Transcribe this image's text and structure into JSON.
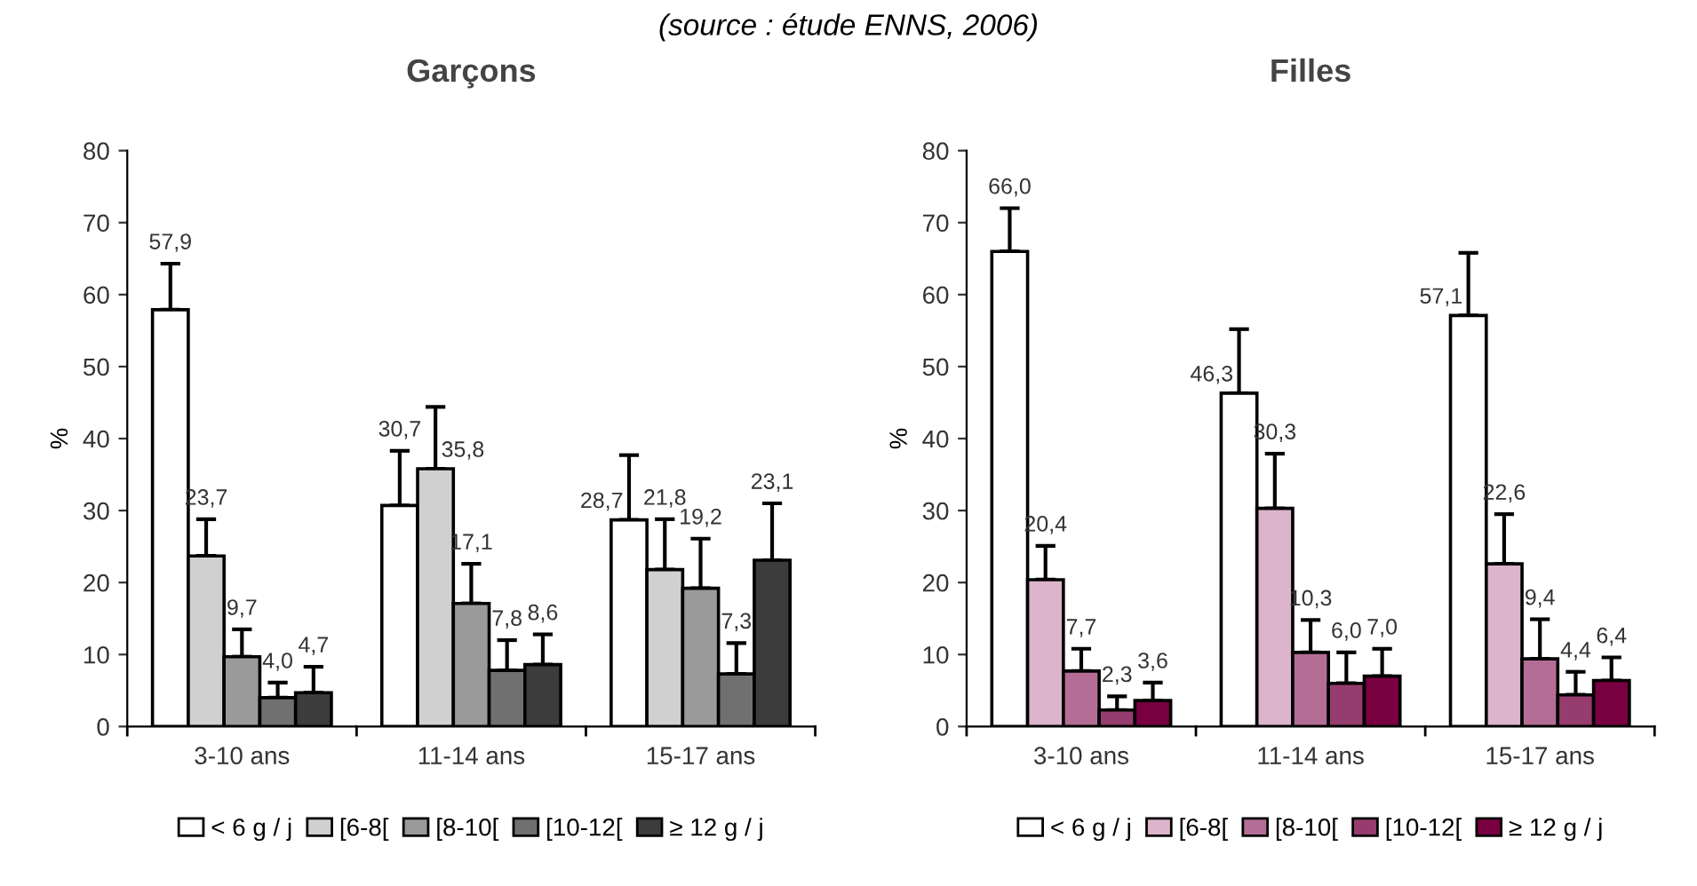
{
  "chart_data": [
    {
      "type": "bar",
      "title": "Garçons",
      "ylabel": "%",
      "categories": [
        "3-10 ans",
        "11-14 ans",
        "15-17 ans"
      ],
      "ylim": [
        0,
        80
      ],
      "yticks": [
        0,
        10,
        20,
        30,
        40,
        50,
        60,
        70,
        80
      ],
      "grid": false,
      "legend": "bottom",
      "annotations": [
        "(source : étude ENNS, 2006)"
      ],
      "series": [
        {
          "name": "< 6 g / j",
          "color": "#ffffff",
          "values": [
            57.9,
            30.7,
            28.7
          ],
          "value_labels": [
            "57,9",
            "30,7",
            "28,7"
          ],
          "errors": [
            [
              57.9,
              64.3
            ],
            [
              30.7,
              38.3
            ],
            [
              28.7,
              37.7
            ]
          ]
        },
        {
          "name": "[6-8[",
          "color": "#d0d0d0",
          "values": [
            23.7,
            35.8,
            21.8
          ],
          "value_labels": [
            "23,7",
            "35,8",
            "21,8"
          ],
          "errors": [
            [
              23.7,
              28.8
            ],
            [
              35.8,
              44.4
            ],
            [
              21.8,
              28.8
            ]
          ]
        },
        {
          "name": "[8-10[",
          "color": "#9a9a9a",
          "values": [
            9.7,
            17.1,
            19.2
          ],
          "value_labels": [
            "9,7",
            "17,1",
            "19,2"
          ],
          "errors": [
            [
              9.7,
              13.5
            ],
            [
              17.1,
              22.6
            ],
            [
              19.2,
              26.1
            ]
          ]
        },
        {
          "name": "[10-12[",
          "color": "#707070",
          "values": [
            4.0,
            7.8,
            7.3
          ],
          "value_labels": [
            "4,0",
            "7,8",
            "7,3"
          ],
          "errors": [
            [
              4.0,
              6.1
            ],
            [
              7.8,
              12.0
            ],
            [
              7.3,
              11.6
            ]
          ]
        },
        {
          "name": "≥ 12 g / j",
          "color": "#3c3c3c",
          "values": [
            4.7,
            8.6,
            23.1
          ],
          "value_labels": [
            "4,7",
            "8,6",
            "23,1"
          ],
          "errors": [
            [
              4.7,
              8.3
            ],
            [
              8.6,
              12.8
            ],
            [
              23.1,
              31.0
            ]
          ]
        }
      ]
    },
    {
      "type": "bar",
      "title": "Filles",
      "ylabel": "%",
      "categories": [
        "3-10 ans",
        "11-14 ans",
        "15-17 ans"
      ],
      "ylim": [
        0,
        80
      ],
      "yticks": [
        0,
        10,
        20,
        30,
        40,
        50,
        60,
        70,
        80
      ],
      "grid": false,
      "legend": "bottom",
      "series": [
        {
          "name": "< 6 g / j",
          "color": "#ffffff",
          "values": [
            66.0,
            46.3,
            57.1
          ],
          "value_labels": [
            "66,0",
            "46,3",
            "57,1"
          ],
          "errors": [
            [
              66.0,
              72.0
            ],
            [
              46.3,
              55.2
            ],
            [
              57.1,
              65.8
            ]
          ]
        },
        {
          "name": "[6-8[",
          "color": "#dcb4cc",
          "values": [
            20.4,
            30.3,
            22.6
          ],
          "value_labels": [
            "20,4",
            "30,3",
            "22,6"
          ],
          "errors": [
            [
              20.4,
              25.1
            ],
            [
              30.3,
              37.9
            ],
            [
              22.6,
              29.5
            ]
          ]
        },
        {
          "name": "[8-10[",
          "color": "#b46e96",
          "values": [
            7.7,
            10.3,
            9.4
          ],
          "value_labels": [
            "7,7",
            "10,3",
            "9,4"
          ],
          "errors": [
            [
              7.7,
              10.8
            ],
            [
              10.3,
              14.8
            ],
            [
              9.4,
              14.9
            ]
          ]
        },
        {
          "name": "[10-12[",
          "color": "#963c6e",
          "values": [
            2.3,
            6.0,
            4.4
          ],
          "value_labels": [
            "2,3",
            "6,0",
            "4,4"
          ],
          "errors": [
            [
              2.3,
              4.2
            ],
            [
              6.0,
              10.3
            ],
            [
              4.4,
              7.6
            ]
          ]
        },
        {
          "name": "≥ 12 g / j",
          "color": "#780040",
          "values": [
            3.6,
            7.0,
            6.4
          ],
          "value_labels": [
            "3,6",
            "7,0",
            "6,4"
          ],
          "errors": [
            [
              3.6,
              6.1
            ],
            [
              7.0,
              10.8
            ],
            [
              6.4,
              9.6
            ]
          ]
        }
      ]
    }
  ]
}
